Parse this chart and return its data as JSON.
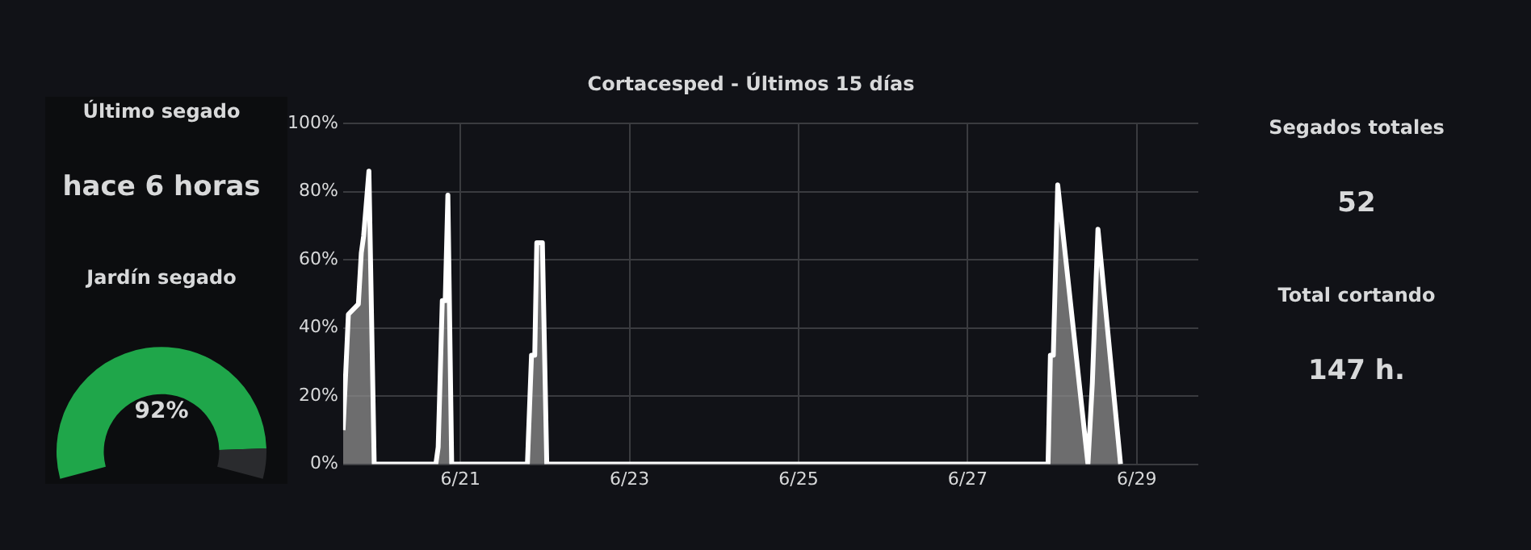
{
  "chart_data": [
    {
      "type": "other",
      "title": "Último segado",
      "annotations": [
        "hace 6 horas"
      ]
    },
    {
      "type": "area",
      "title": "Cortacesped - Últimos 15 días",
      "series": [
        {
          "color": "#ffffff",
          "x": [
            "--06-19T14:40",
            "--06-19T16:10",
            "--06-19T19:00",
            "--06-19T19:50",
            "--06-19T20:30",
            "--06-19T22:00",
            "--06-19T23:30",
            "--06-20T17:00",
            "--06-20T17:40",
            "--06-20T18:50",
            "--06-20T19:40",
            "--06-20T20:25",
            "--06-20T21:30",
            "--06-21T19:00",
            "--06-21T20:10",
            "--06-21T21:05",
            "--06-21T21:40",
            "--06-21T23:15",
            "--06-22T00:30",
            "--06-27T22:50",
            "--06-27T23:30",
            "--06-28T00:20",
            "--06-28T01:35",
            "--06-28T10:10",
            "--06-28T11:25",
            "--06-28T13:00",
            "--06-28T19:25"
          ],
          "values": [
            10,
            44,
            47,
            62,
            67,
            86,
            0,
            0,
            5,
            48,
            48,
            79,
            0,
            0,
            32,
            32,
            65,
            65,
            0,
            0,
            32,
            32,
            82,
            0,
            24,
            69,
            0
          ]
        }
      ],
      "xlim": [
        "--06-19T14:40",
        "--06-29T17:30"
      ],
      "xticks": [
        {
          "value": "--06-21",
          "label": "6/21"
        },
        {
          "value": "--06-23",
          "label": "6/23"
        },
        {
          "value": "--06-25",
          "label": "6/25"
        },
        {
          "value": "--06-27",
          "label": "6/27"
        },
        {
          "value": "--06-29",
          "label": "6/29"
        }
      ],
      "ylim": [
        0,
        100
      ],
      "yticks": [
        {
          "value": 0,
          "label": "0%"
        },
        {
          "value": 20,
          "label": "20%"
        },
        {
          "value": 40,
          "label": "40%"
        },
        {
          "value": 60,
          "label": "60%"
        },
        {
          "value": 80,
          "label": "80%"
        },
        {
          "value": 100,
          "label": "100%"
        }
      ],
      "grid": true
    },
    {
      "type": "other",
      "title": "Segados totales",
      "annotations": [
        "52"
      ]
    },
    {
      "type": "donut",
      "title": "Jardín segado",
      "categories": [
        null,
        null
      ],
      "values": [
        92,
        8
      ],
      "colors": [
        "#1fa64a",
        "#2a2b2e"
      ],
      "value_labels": [
        "92%",
        null
      ]
    },
    {
      "type": "other",
      "title": "Total cortando",
      "annotations": [
        "147 h."
      ]
    }
  ]
}
